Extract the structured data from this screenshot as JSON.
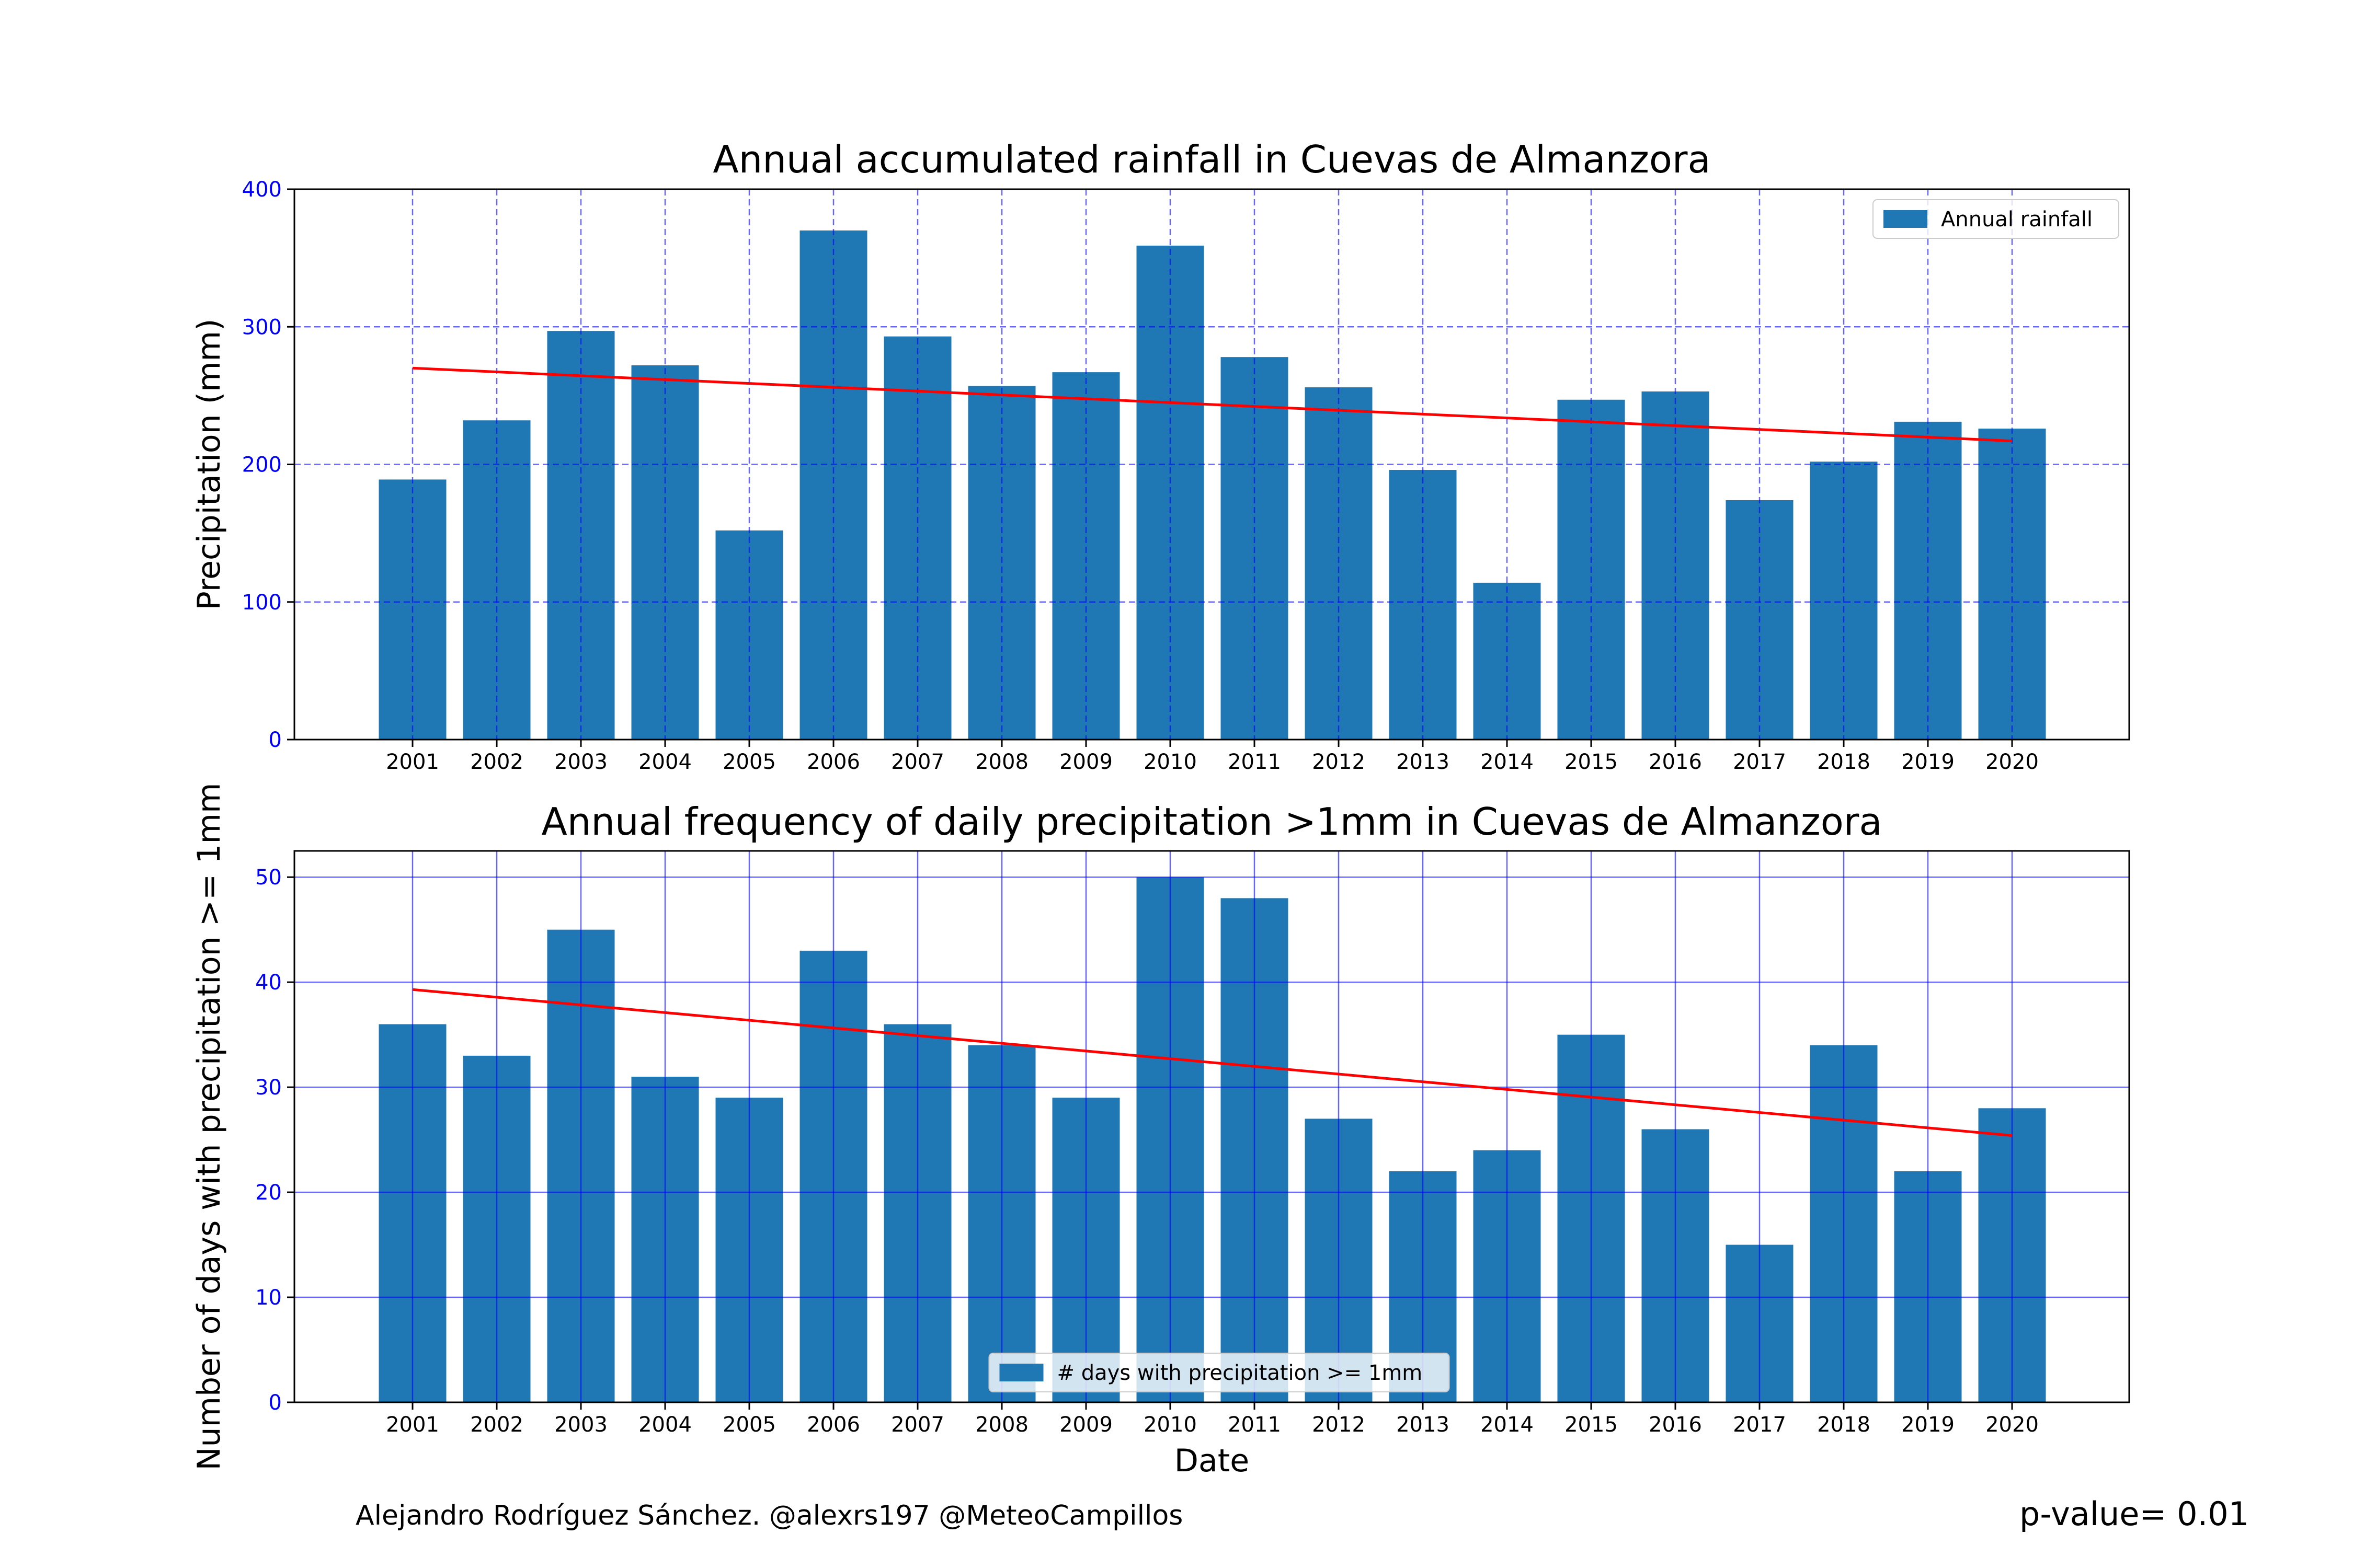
{
  "footer": {
    "credit": "Alejandro Rodríguez Sánchez. @alexrs197 @MeteoCampillos",
    "pvalue": "p-value= 0.01"
  },
  "colors": {
    "bar": "#1f77b4",
    "trend": "#ff0000",
    "grid": "#0000ff",
    "ytick": "#0000ff"
  },
  "chart_data": [
    {
      "type": "bar",
      "title": "Annual accumulated rainfall in Cuevas de Almanzora",
      "xlabel": "",
      "ylabel": "Precipitation (mm)",
      "categories": [
        "2001",
        "2002",
        "2003",
        "2004",
        "2005",
        "2006",
        "2007",
        "2008",
        "2009",
        "2010",
        "2011",
        "2012",
        "2013",
        "2014",
        "2015",
        "2016",
        "2017",
        "2018",
        "2019",
        "2020"
      ],
      "series": [
        {
          "name": "Annual rainfall",
          "values": [
            189,
            232,
            297,
            272,
            152,
            370,
            293,
            257,
            267,
            359,
            278,
            256,
            196,
            114,
            247,
            253,
            174,
            202,
            231,
            226
          ]
        }
      ],
      "trend": {
        "start": 270,
        "end": 217
      },
      "ylim": [
        0,
        400
      ],
      "yticks": [
        0,
        100,
        200,
        300,
        400
      ],
      "grid": "dashed",
      "legend": "top-right"
    },
    {
      "type": "bar",
      "title": "Annual frequency of daily precipitation >1mm in Cuevas de Almanzora",
      "xlabel": "Date",
      "ylabel": "Number of days with precipitation >= 1mm",
      "categories": [
        "2001",
        "2002",
        "2003",
        "2004",
        "2005",
        "2006",
        "2007",
        "2008",
        "2009",
        "2010",
        "2011",
        "2012",
        "2013",
        "2014",
        "2015",
        "2016",
        "2017",
        "2018",
        "2019",
        "2020"
      ],
      "series": [
        {
          "name": "# days with precipitation >= 1mm",
          "values": [
            36,
            33,
            45,
            31,
            29,
            43,
            36,
            34,
            29,
            50,
            48,
            27,
            22,
            24,
            35,
            26,
            15,
            34,
            22,
            28
          ]
        }
      ],
      "trend": {
        "start": 39.3,
        "end": 25.4
      },
      "ylim": [
        0,
        52.5
      ],
      "yticks": [
        0,
        10,
        20,
        30,
        40,
        50
      ],
      "grid": "solid",
      "legend": "bottom-center"
    }
  ]
}
